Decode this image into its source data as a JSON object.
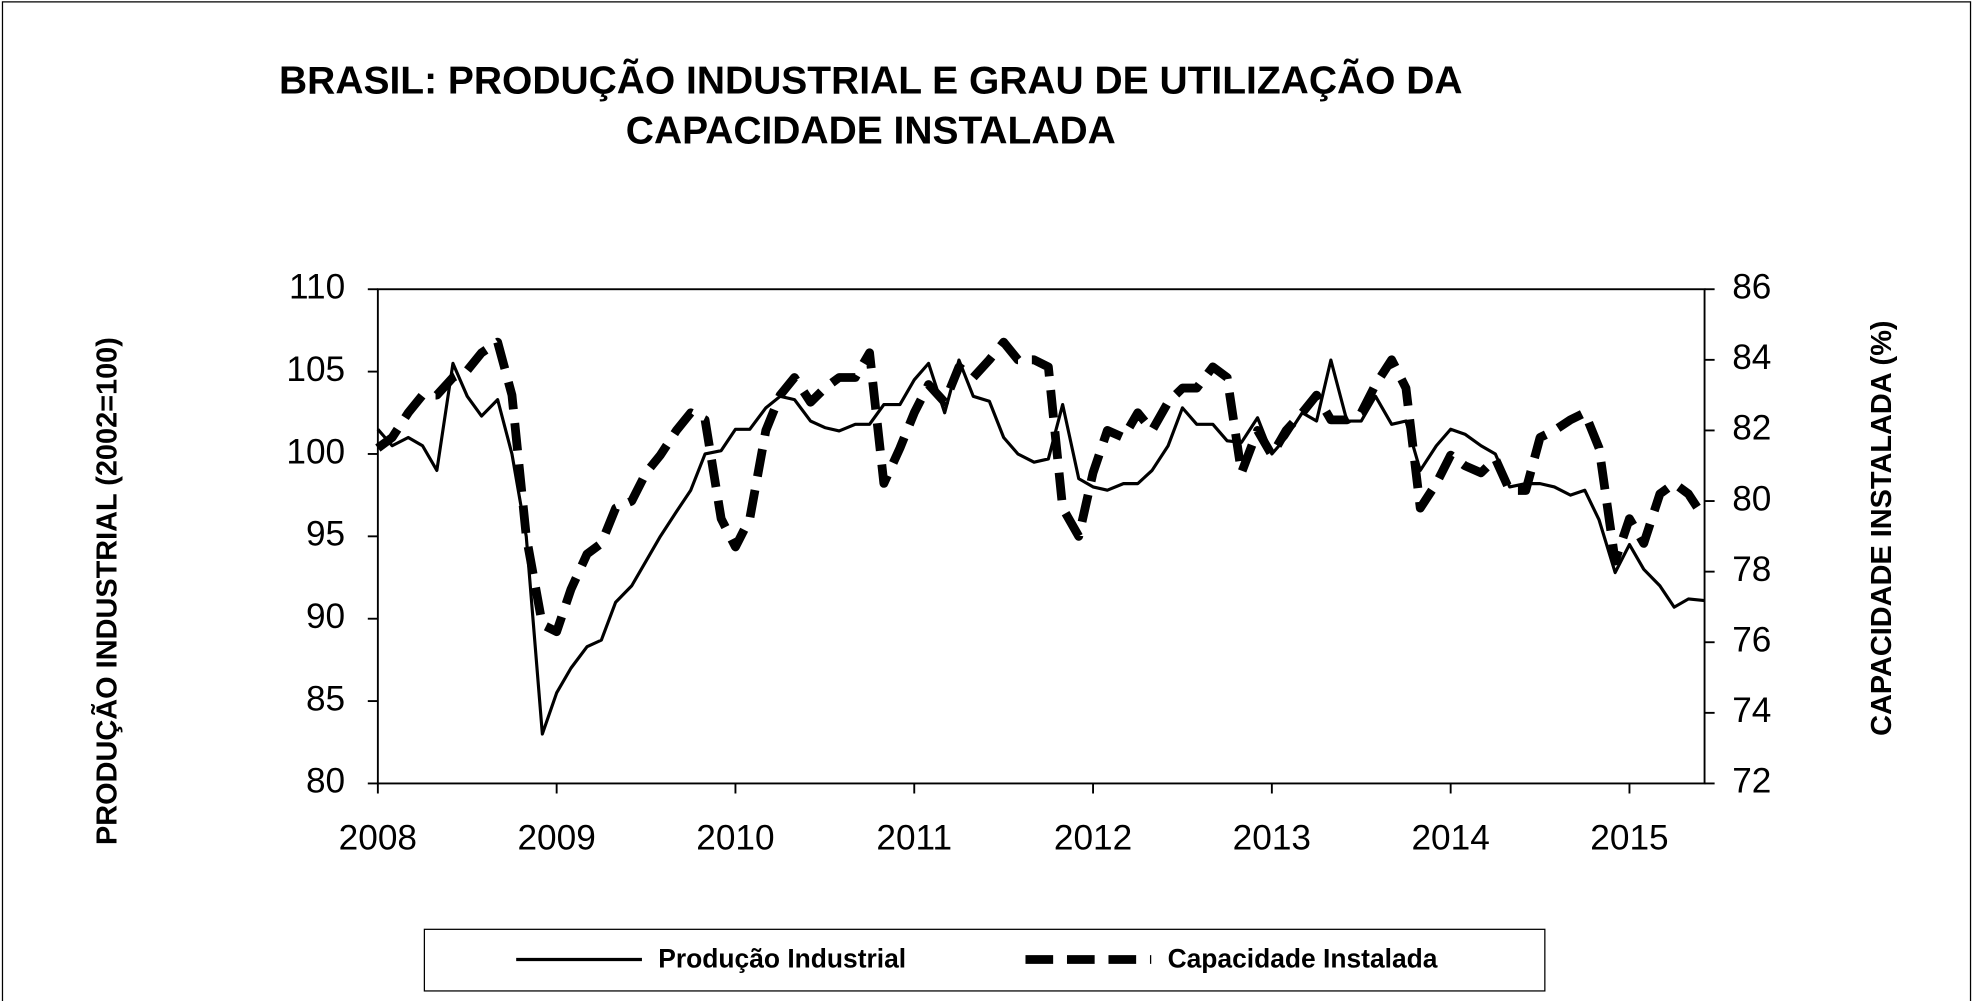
{
  "chart_data": {
    "type": "line",
    "title": [
      "BRASIL: PRODUÇÃO INDUSTRIAL E GRAU DE  UTILIZAÇÃO DA",
      "CAPACIDADE INSTALADA"
    ],
    "y_label": "PRODUÇÃO INDUSTRIAL  (2002=100)",
    "y2_label": "CAPACIDADE INSTALADA (%)",
    "x": [
      2008,
      2008.08,
      2008.17,
      2008.25,
      2008.33,
      2008.42,
      2008.5,
      2008.58,
      2008.67,
      2008.75,
      2008.83,
      2008.92,
      2009,
      2009.08,
      2009.17,
      2009.25,
      2009.33,
      2009.42,
      2009.5,
      2009.58,
      2009.67,
      2009.75,
      2009.83,
      2009.92,
      2010,
      2010.08,
      2010.17,
      2010.25,
      2010.33,
      2010.42,
      2010.5,
      2010.58,
      2010.67,
      2010.75,
      2010.83,
      2010.92,
      2011,
      2011.08,
      2011.17,
      2011.25,
      2011.33,
      2011.42,
      2011.5,
      2011.58,
      2011.67,
      2011.75,
      2011.83,
      2011.92,
      2012,
      2012.08,
      2012.17,
      2012.25,
      2012.33,
      2012.42,
      2012.5,
      2012.58,
      2012.67,
      2012.75,
      2012.83,
      2012.92,
      2013,
      2013.08,
      2013.17,
      2013.25,
      2013.33,
      2013.42,
      2013.5,
      2013.58,
      2013.67,
      2013.75,
      2013.83,
      2013.92,
      2014,
      2014.08,
      2014.17,
      2014.25,
      2014.33,
      2014.42,
      2014.5,
      2014.58,
      2014.67,
      2014.75,
      2014.83,
      2014.92,
      2015,
      2015.08,
      2015.17,
      2015.25,
      2015.33,
      2015.42
    ],
    "series": [
      {
        "name": "Produção Industrial",
        "color": "#000000",
        "style": "solid",
        "values": [
          101.5,
          100.5,
          101,
          100.5,
          99,
          105.5,
          103.5,
          102.3,
          103.3,
          100,
          95,
          83,
          85.5,
          87,
          88.3,
          88.7,
          91,
          92,
          93.5,
          95,
          96.5,
          97.8,
          100,
          100.2,
          101.5,
          101.5,
          102.8,
          103.5,
          103.3,
          102,
          101.6,
          101.4,
          101.8,
          101.8,
          103,
          103,
          104.5,
          105.5,
          102.5,
          105.7,
          103.5,
          103.2,
          101,
          100,
          99.5,
          99.7,
          103,
          98.5,
          98,
          97.8,
          98.2,
          98.2,
          99,
          100.5,
          102.8,
          101.8,
          101.8,
          100.8,
          100.7,
          102.2,
          100,
          101,
          102.5,
          102,
          105.7,
          102,
          102,
          103.5,
          101.8,
          102,
          99,
          100.5,
          101.5,
          101.2,
          100.5,
          100,
          98,
          98.2,
          98.2,
          98,
          97.5,
          97.8,
          96,
          92.8,
          94.5,
          93,
          92,
          90.7,
          91.2,
          91.1
        ]
      },
      {
        "name": "Capacidade Instalada",
        "color": "#000000",
        "style": "dashed",
        "axis": "y2",
        "values": [
          81.5,
          81.8,
          82.5,
          83,
          83,
          83.5,
          83.7,
          84.2,
          84.5,
          83,
          79,
          76.5,
          76.3,
          77.5,
          78.5,
          78.8,
          79.8,
          80,
          80.8,
          81.3,
          82,
          82.5,
          82.3,
          79.5,
          78.7,
          79.5,
          82,
          83,
          83.5,
          82.8,
          83.2,
          83.5,
          83.5,
          84.2,
          80.5,
          81.5,
          82.5,
          83.3,
          82.8,
          83.8,
          83.5,
          84,
          84.5,
          84,
          84,
          83.8,
          79.8,
          79,
          80.8,
          82,
          81.8,
          82.5,
          82,
          82.8,
          83.2,
          83.2,
          83.8,
          83.5,
          80.8,
          82,
          81.3,
          82,
          82.5,
          83,
          82.3,
          82.3,
          82.5,
          83.3,
          84,
          83.2,
          79.8,
          80.5,
          81.3,
          81,
          80.8,
          81.2,
          80.3,
          80.3,
          81.8,
          82,
          82.3,
          82.5,
          81.5,
          78.3,
          79.5,
          78.8,
          80.2,
          80.5,
          80.2,
          79.5
        ]
      }
    ],
    "xlim": [
      2008,
      2015.42
    ],
    "xticks": [
      2008,
      2009,
      2010,
      2011,
      2012,
      2013,
      2014,
      2015
    ],
    "ylim": [
      80,
      110
    ],
    "yticks": [
      80,
      85,
      90,
      95,
      100,
      105,
      110
    ],
    "y2lim": [
      72,
      86
    ],
    "y2ticks": [
      72,
      74,
      76,
      78,
      80,
      82,
      84,
      86
    ],
    "grid": false,
    "legend": "bottom"
  }
}
